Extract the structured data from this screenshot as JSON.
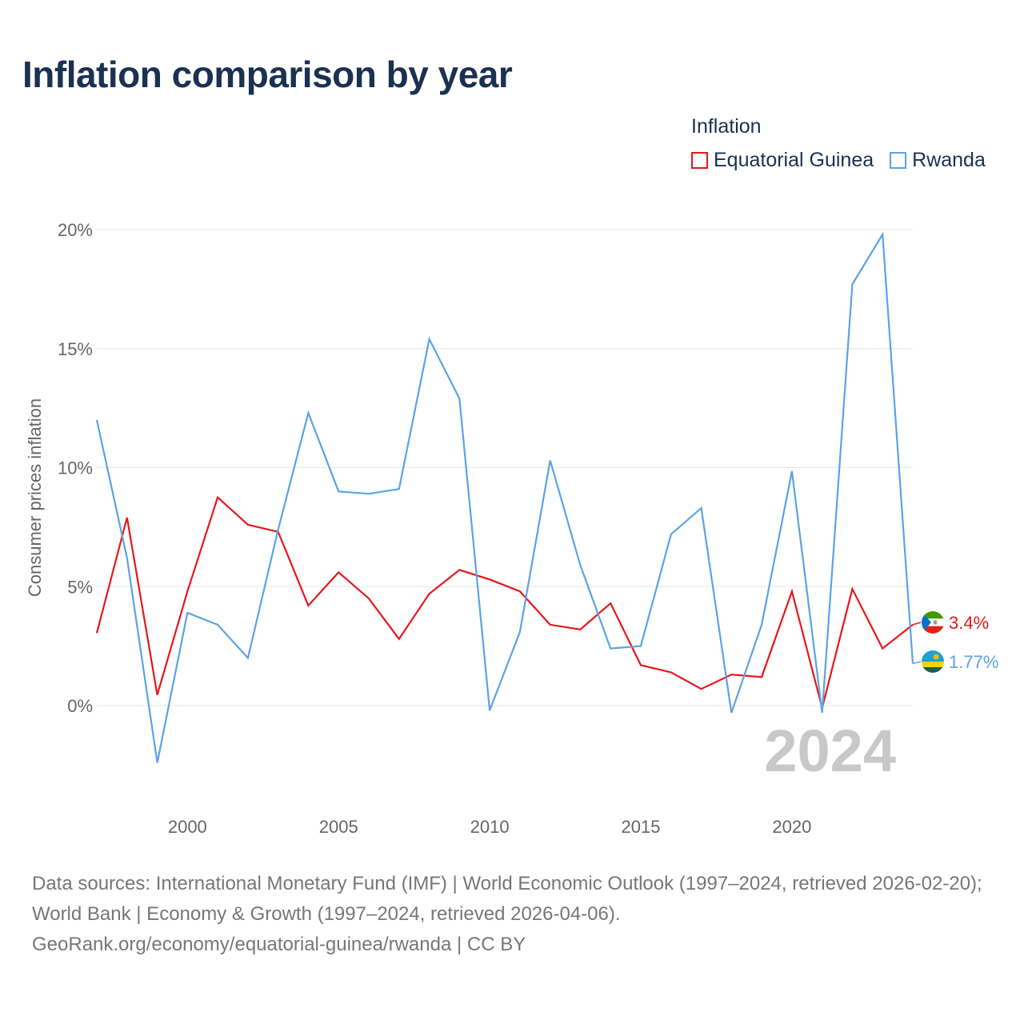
{
  "title": "Inflation comparison by year",
  "legend": {
    "title": "Inflation",
    "items": [
      {
        "name": "Equatorial Guinea",
        "color": "#e8161b"
      },
      {
        "name": "Rwanda",
        "color": "#5ba3e6"
      }
    ]
  },
  "footer": {
    "sources": "Data sources: International Monetary Fund (IMF) | World Economic Outlook (1997–2024, retrieved 2026-02-20); World Bank | Economy & Growth (1997–2024, retrieved 2026-04-06).",
    "credit": "GeoRank.org/economy/equatorial-guinea/rwanda | CC BY"
  },
  "chart_data": {
    "type": "line",
    "ylabel": "Consumer prices inflation",
    "xlabel": "",
    "current_year": "2024",
    "xlim": [
      1997,
      2024
    ],
    "ylim": [
      -3.8,
      20
    ],
    "x_ticks": [
      2000,
      2005,
      2010,
      2015,
      2020
    ],
    "x_tick_labels": [
      "2000",
      "2005",
      "2010",
      "2015",
      "2020"
    ],
    "y_ticks": [
      0,
      5,
      10,
      15,
      20
    ],
    "y_tick_labels": [
      "0%",
      "5%",
      "10%",
      "15%",
      "20%"
    ],
    "grid": true,
    "x": [
      1997,
      1998,
      1999,
      2000,
      2001,
      2002,
      2003,
      2004,
      2005,
      2006,
      2007,
      2008,
      2009,
      2010,
      2011,
      2012,
      2013,
      2014,
      2015,
      2016,
      2017,
      2018,
      2019,
      2020,
      2021,
      2022,
      2023,
      2024
    ],
    "series": [
      {
        "name": "Equatorial Guinea",
        "color": "#e8161b",
        "end_label": "3.4%",
        "values": [
          3.05,
          7.9,
          0.45,
          4.8,
          8.75,
          7.6,
          7.3,
          4.2,
          5.6,
          4.5,
          2.8,
          4.7,
          5.7,
          5.3,
          4.8,
          3.4,
          3.2,
          4.3,
          1.7,
          1.4,
          0.7,
          1.3,
          1.2,
          4.8,
          -0.1,
          4.9,
          2.4,
          3.4
        ]
      },
      {
        "name": "Rwanda",
        "color": "#5ba3e6",
        "end_label": "1.77%",
        "values": [
          12.0,
          6.2,
          -2.4,
          3.9,
          3.4,
          2.0,
          7.4,
          12.3,
          9.0,
          8.9,
          9.1,
          15.4,
          12.9,
          -0.2,
          3.1,
          10.3,
          5.9,
          2.4,
          2.5,
          7.2,
          8.3,
          -0.3,
          3.4,
          9.85,
          -0.3,
          17.7,
          19.8,
          1.77
        ]
      }
    ]
  }
}
